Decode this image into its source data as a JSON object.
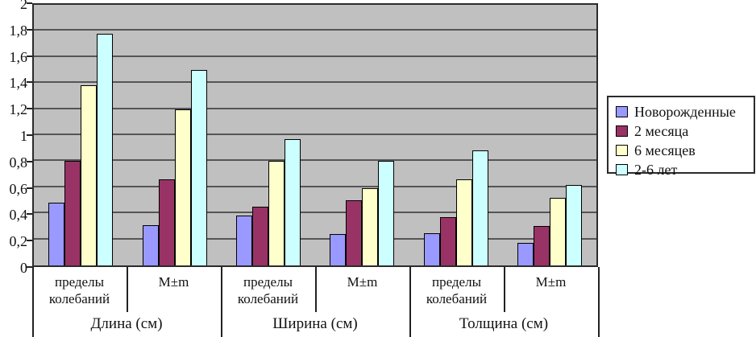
{
  "chart_data": {
    "type": "bar",
    "title": "",
    "plot_background": "#c0c0c0",
    "gridline_color": "#555555",
    "grid": true,
    "legend_position": "right",
    "y_axis": {
      "min": 0,
      "max": 2,
      "ticks": [
        {
          "value": 0,
          "label": "0"
        },
        {
          "value": 0.2,
          "label": "0,2"
        },
        {
          "value": 0.4,
          "label": "0,4"
        },
        {
          "value": 0.6,
          "label": "0,6"
        },
        {
          "value": 0.8,
          "label": "0,8"
        },
        {
          "value": 1,
          "label": "1"
        },
        {
          "value": 1.2,
          "label": "1,2"
        },
        {
          "value": 1.4,
          "label": "1,4"
        },
        {
          "value": 1.6,
          "label": "1,6"
        },
        {
          "value": 1.8,
          "label": "1,8"
        },
        {
          "value": 2,
          "label": "2"
        }
      ]
    },
    "x_axis": {
      "subgroup_labels": [
        "пределы колебаний",
        "M±m",
        "пределы колебаний",
        "M±m",
        "пределы колебаний",
        "M±m"
      ],
      "category_labels": [
        "Длина (см)",
        "Ширина (см)",
        "Толщина (см)"
      ]
    },
    "series": [
      {
        "name": "Новорожденные",
        "color": "#9999ff",
        "values": [
          0.48,
          0.31,
          0.38,
          0.24,
          0.25,
          0.17
        ]
      },
      {
        "name": "2 месяца",
        "color": "#993366",
        "values": [
          0.8,
          0.66,
          0.45,
          0.5,
          0.37,
          0.3
        ]
      },
      {
        "name": "6 месяцев",
        "color": "#ffffcc",
        "values": [
          1.38,
          1.2,
          0.8,
          0.59,
          0.66,
          0.52
        ]
      },
      {
        "name": "2-6 лет",
        "color": "#ccffff",
        "values": [
          1.78,
          1.5,
          0.97,
          0.8,
          0.88,
          0.62
        ]
      }
    ]
  }
}
